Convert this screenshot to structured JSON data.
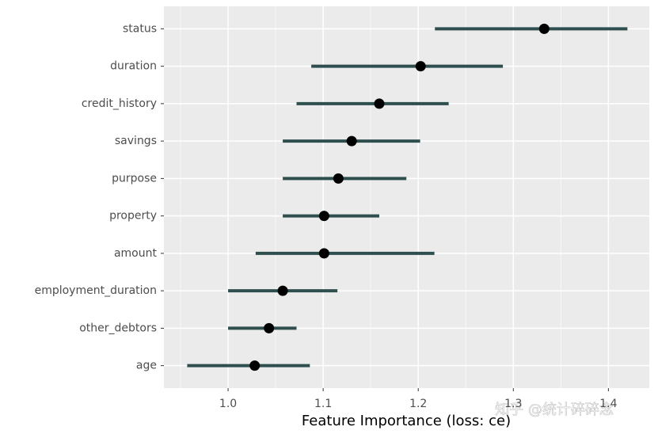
{
  "chart_data": {
    "type": "pointrange",
    "x_label": "Feature Importance (loss: ce)",
    "categories": [
      "status",
      "duration",
      "credit_history",
      "savings",
      "purpose",
      "property",
      "amount",
      "employment_duration",
      "other_debtors",
      "age"
    ],
    "values": [
      1.3325,
      1.2025,
      1.159,
      1.13,
      1.116,
      1.101,
      1.101,
      1.0575,
      1.043,
      1.028
    ],
    "lower": [
      1.2175,
      1.0875,
      1.072,
      1.0575,
      1.0575,
      1.0575,
      1.029,
      1.0,
      1.0,
      0.957
    ],
    "upper": [
      1.42,
      1.289,
      1.232,
      1.202,
      1.1875,
      1.159,
      1.217,
      1.115,
      1.072,
      1.086
    ],
    "color": "#000000",
    "range_color": "#2f4f4f",
    "xlim": [
      0.9325,
      1.443
    ],
    "xticks": [
      {
        "value": 1.0,
        "label": "1.0"
      },
      1.1,
      1.2,
      1.3,
      1.4
    ],
    "grid": true,
    "watermark": "知乎 @统计碎碎念"
  }
}
